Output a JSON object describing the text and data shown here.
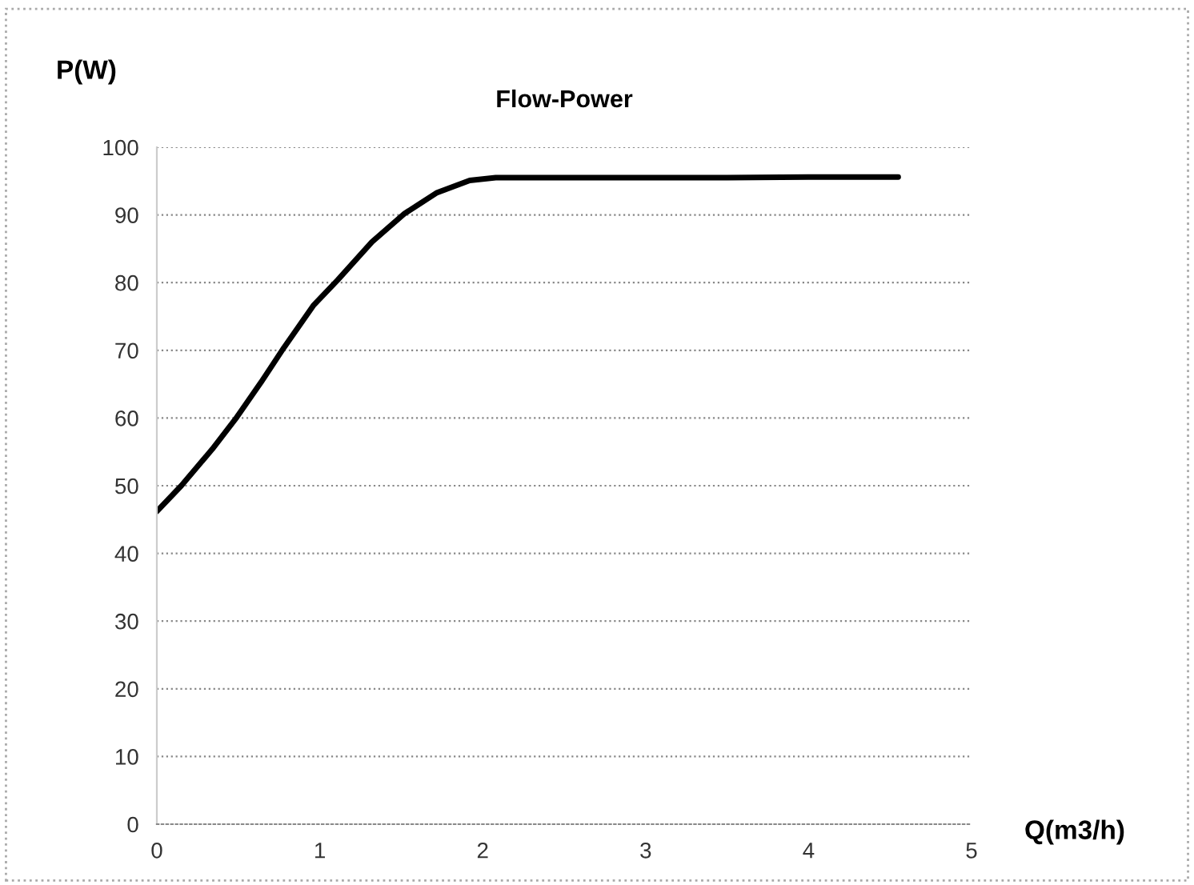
{
  "chart_data": {
    "type": "line",
    "title": "Flow-Power",
    "xlabel": "Q(m3/h)",
    "ylabel": "P(W)",
    "series": [
      {
        "color": "#000000",
        "x": [
          0,
          0.15,
          0.34,
          0.49,
          0.64,
          0.78,
          0.96,
          1.11,
          1.32,
          1.52,
          1.72,
          1.92,
          2.08,
          2.5,
          3,
          3.5,
          4,
          4.55
        ],
        "values": [
          46.2,
          50,
          55.4,
          60.1,
          65.3,
          70.4,
          76.6,
          80.4,
          86,
          90.2,
          93.3,
          95.1,
          95.5,
          95.5,
          95.5,
          95.5,
          95.6,
          95.6
        ]
      }
    ],
    "xlim": [
      0,
      5
    ],
    "xticks": [
      0,
      1,
      2,
      3,
      4,
      5
    ],
    "ylim": [
      0,
      100
    ],
    "yticks": [
      0,
      10,
      20,
      30,
      40,
      50,
      60,
      70,
      80,
      90,
      100
    ],
    "grid": "y",
    "marker": "none",
    "line_style": "solid"
  }
}
